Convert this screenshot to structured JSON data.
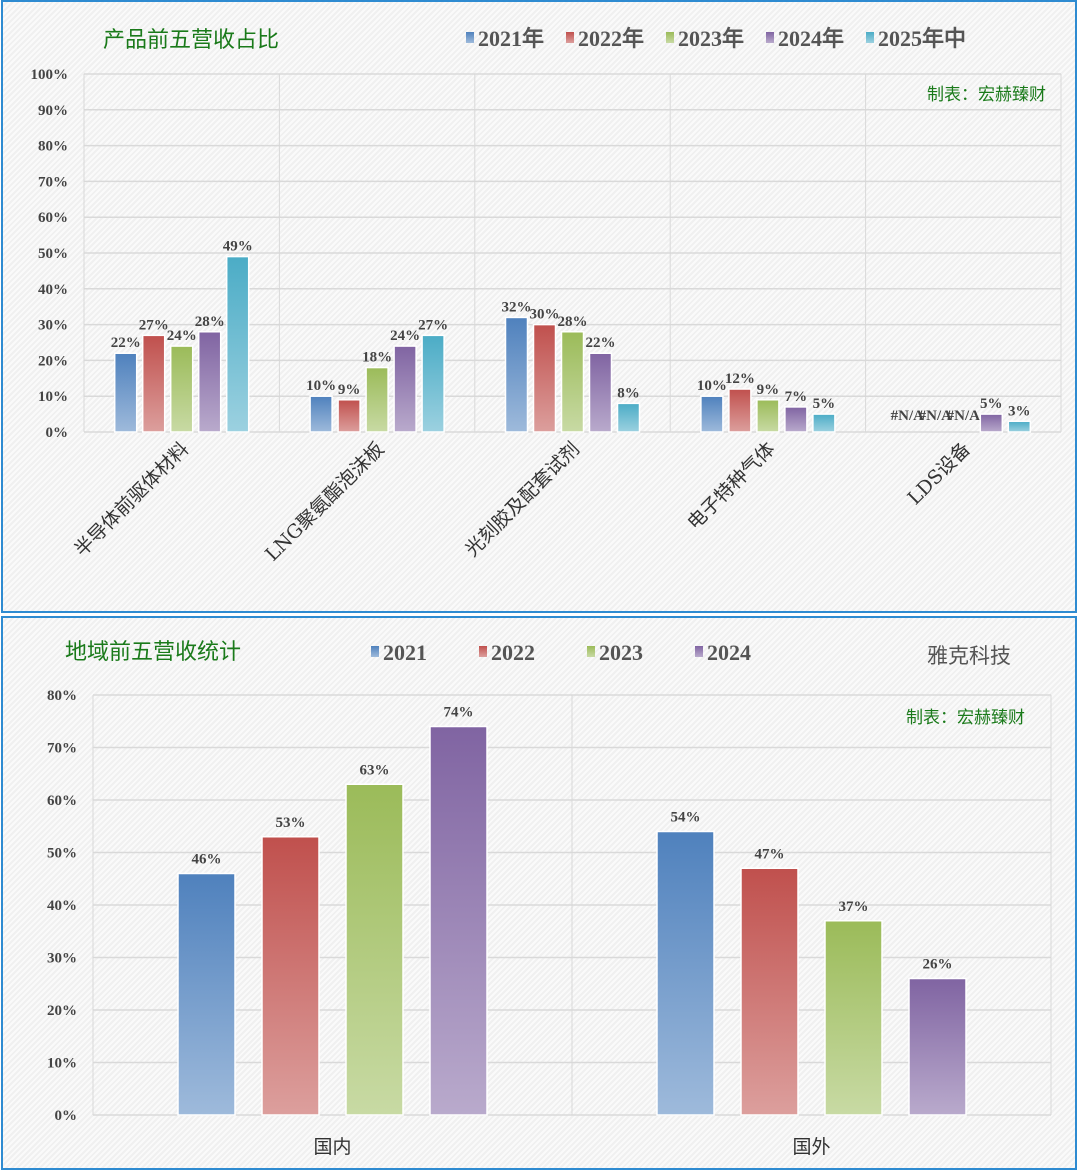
{
  "chart_data": [
    {
      "type": "bar",
      "title": "产品前五营收占比",
      "credit": "制表：宏赫臻财",
      "categories": [
        "半导体前驱体材料",
        "LNG聚氨酯泡沫板",
        "光刻胶及配套试剂",
        "电子特种气体",
        "LDS设备"
      ],
      "series": [
        {
          "name": "2021年",
          "color": "#4f81bd",
          "values": [
            22,
            10,
            32,
            10,
            null
          ],
          "labels": [
            "22%",
            "10%",
            "32%",
            "10%",
            "#N/A"
          ]
        },
        {
          "name": "2022年",
          "color": "#c0504d",
          "values": [
            27,
            9,
            30,
            12,
            null
          ],
          "labels": [
            "27%",
            "9%",
            "30%",
            "12%",
            "#N/A"
          ]
        },
        {
          "name": "2023年",
          "color": "#9bbb59",
          "values": [
            24,
            18,
            28,
            9,
            null
          ],
          "labels": [
            "24%",
            "18%",
            "28%",
            "9%",
            "#N/A"
          ]
        },
        {
          "name": "2024年",
          "color": "#8064a2",
          "values": [
            28,
            24,
            22,
            7,
            5
          ],
          "labels": [
            "28%",
            "24%",
            "22%",
            "7%",
            "5%"
          ]
        },
        {
          "name": "2025年中",
          "color": "#4bacc6",
          "values": [
            49,
            27,
            8,
            5,
            3
          ],
          "labels": [
            "49%",
            "27%",
            "8%",
            "5%",
            "3%"
          ]
        }
      ],
      "ylim": [
        0,
        100
      ],
      "yticks": [
        "0%",
        "10%",
        "20%",
        "30%",
        "40%",
        "50%",
        "60%",
        "70%",
        "80%",
        "90%",
        "100%"
      ],
      "grid": true,
      "legend": "top"
    },
    {
      "type": "bar",
      "title": "地域前五营收统计",
      "company": "雅克科技",
      "credit": "制表：宏赫臻财",
      "categories": [
        "国内",
        "国外"
      ],
      "series": [
        {
          "name": "2021",
          "color": "#4f81bd",
          "values": [
            46,
            54
          ],
          "labels": [
            "46%",
            "54%"
          ]
        },
        {
          "name": "2022",
          "color": "#c0504d",
          "values": [
            53,
            47
          ],
          "labels": [
            "53%",
            "47%"
          ]
        },
        {
          "name": "2023",
          "color": "#9bbb59",
          "values": [
            63,
            37
          ],
          "labels": [
            "63%",
            "37%"
          ]
        },
        {
          "name": "2024",
          "color": "#8064a2",
          "values": [
            74,
            26
          ],
          "labels": [
            "74%",
            "26%"
          ]
        }
      ],
      "ylim": [
        0,
        80
      ],
      "yticks": [
        "0%",
        "10%",
        "20%",
        "30%",
        "40%",
        "50%",
        "60%",
        "70%",
        "80%"
      ],
      "grid": true,
      "legend": "top"
    }
  ]
}
